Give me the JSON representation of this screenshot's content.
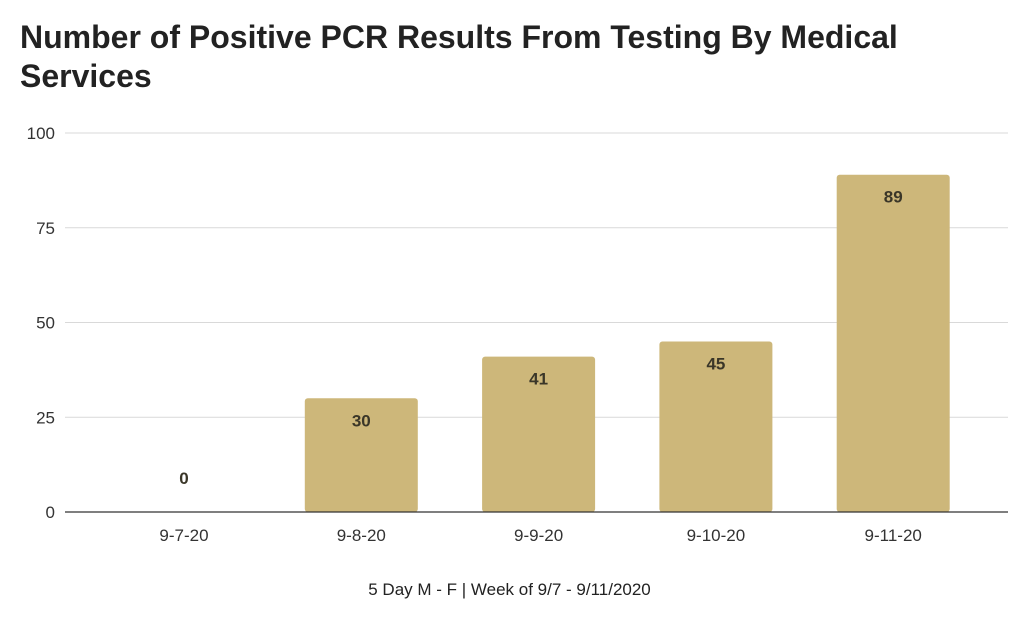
{
  "chart_data": {
    "type": "bar",
    "title": "Number of Positive PCR Results From Testing By Medical Services",
    "xlabel": "5 Day M - F | Week of 9/7 - 9/11/2020",
    "ylabel": "",
    "categories": [
      "9-7-20",
      "9-8-20",
      "9-9-20",
      "9-10-20",
      "9-11-20"
    ],
    "values": [
      0,
      30,
      41,
      45,
      89
    ],
    "ylim": [
      0,
      100
    ],
    "yticks": [
      0,
      25,
      50,
      75,
      100
    ],
    "grid": true,
    "data_labels": true,
    "bar_color": "#CDB77A"
  }
}
